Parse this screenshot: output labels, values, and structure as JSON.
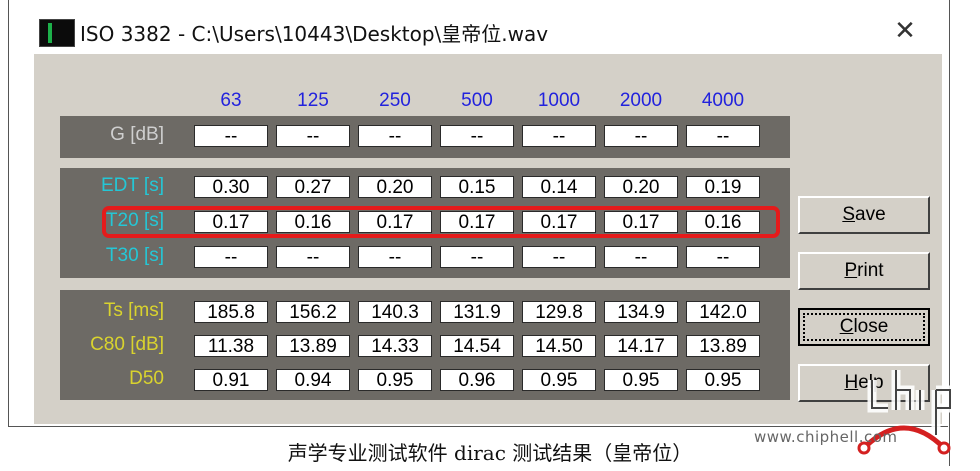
{
  "window": {
    "title": "ISO 3382 - C:\\Users\\10443\\Desktop\\皇帝位.wav",
    "close_glyph": "✕"
  },
  "frequencies": [
    "63",
    "125",
    "250",
    "500",
    "1000",
    "2000",
    "4000"
  ],
  "groups": {
    "gain": {
      "rows": [
        {
          "label": "G [dB]",
          "values": [
            "--",
            "--",
            "--",
            "--",
            "--",
            "--",
            "--"
          ]
        }
      ]
    },
    "reverb": {
      "rows": [
        {
          "label": "EDT [s]",
          "values": [
            "0.30",
            "0.27",
            "0.20",
            "0.15",
            "0.14",
            "0.20",
            "0.19"
          ]
        },
        {
          "label": "T20 [s]",
          "values": [
            "0.17",
            "0.16",
            "0.17",
            "0.17",
            "0.17",
            "0.17",
            "0.16"
          ]
        },
        {
          "label": "T30 [s]",
          "values": [
            "--",
            "--",
            "--",
            "--",
            "--",
            "--",
            "--"
          ]
        }
      ]
    },
    "clarity": {
      "rows": [
        {
          "label": "Ts [ms]",
          "values": [
            "185.8",
            "156.2",
            "140.3",
            "131.9",
            "129.8",
            "134.9",
            "142.0"
          ]
        },
        {
          "label": "C80 [dB]",
          "values": [
            "11.38",
            "13.89",
            "14.33",
            "14.54",
            "14.50",
            "14.17",
            "13.89"
          ]
        },
        {
          "label": "D50",
          "values": [
            "0.91",
            "0.94",
            "0.95",
            "0.96",
            "0.95",
            "0.95",
            "0.95"
          ]
        }
      ]
    }
  },
  "buttons": {
    "save": {
      "mnemonic": "S",
      "rest": "ave"
    },
    "print": {
      "mnemonic": "P",
      "rest": "rint"
    },
    "close": {
      "mnemonic": "C",
      "rest": "lose"
    },
    "help": {
      "mnemonic": "H",
      "rest": "elp"
    }
  },
  "caption": "声学专业测试软件 dirac 测试结果（皇帝位）",
  "watermark": "www.chiphell.com",
  "colors": {
    "label_gain": "#cfcfcf",
    "label_reverb": "#24c7d6",
    "label_clarity": "#d9d32e",
    "frequency": "#2222dd",
    "highlight": "#e41b1b"
  }
}
